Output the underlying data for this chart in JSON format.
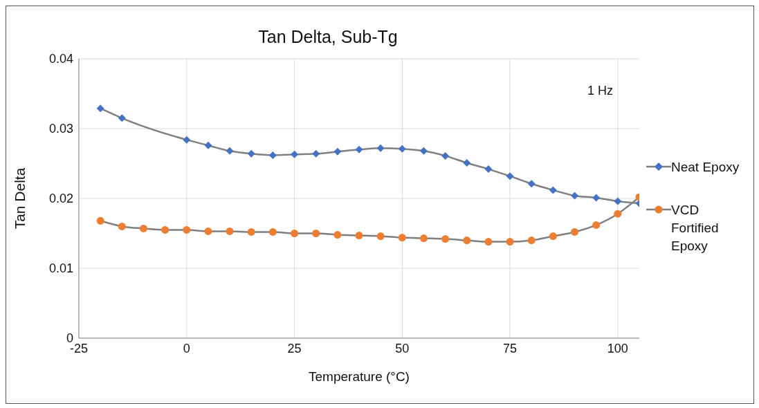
{
  "chart_data": {
    "type": "line",
    "title": "Tan Delta, Sub-Tg",
    "xlabel": "Temperature (°C)",
    "ylabel": "Tan Delta",
    "x": [
      -20,
      -15,
      -10,
      -5,
      0,
      5,
      10,
      15,
      20,
      25,
      30,
      35,
      40,
      45,
      50,
      55,
      60,
      65,
      70,
      75,
      80,
      85,
      90,
      95,
      100,
      105
    ],
    "series": [
      {
        "name": "Neat Epoxy",
        "color": "#4472c4",
        "marker": "diamond",
        "values": [
          0.0329,
          0.0315,
          null,
          null,
          0.0284,
          0.0276,
          0.0268,
          0.0264,
          0.0262,
          0.0263,
          0.0264,
          0.0267,
          0.027,
          0.0272,
          0.0271,
          0.0268,
          0.0261,
          0.0251,
          0.0242,
          0.0232,
          0.0221,
          0.0212,
          0.0204,
          0.0201,
          0.0196,
          0.0193
        ]
      },
      {
        "name": "VCD Fortified Epoxy",
        "color": "#ed7d31",
        "marker": "circle",
        "values": [
          0.0168,
          0.016,
          0.0157,
          0.0155,
          0.0155,
          0.0153,
          0.0153,
          0.0152,
          0.0152,
          0.015,
          0.015,
          0.0148,
          0.0147,
          0.0146,
          0.0144,
          0.0143,
          0.0142,
          0.014,
          0.0138,
          0.0138,
          0.014,
          0.0146,
          0.0152,
          0.0162,
          0.0178,
          0.0202
        ]
      }
    ],
    "xlim": [
      -25,
      105
    ],
    "xticks": [
      -25,
      0,
      25,
      50,
      75,
      100
    ],
    "ylim": [
      0,
      0.04
    ],
    "yticks": [
      0,
      0.01,
      0.02,
      0.03,
      0.04
    ],
    "grid": true,
    "legend": "right",
    "line_style": "solid",
    "annotations": [
      "1 Hz"
    ]
  }
}
